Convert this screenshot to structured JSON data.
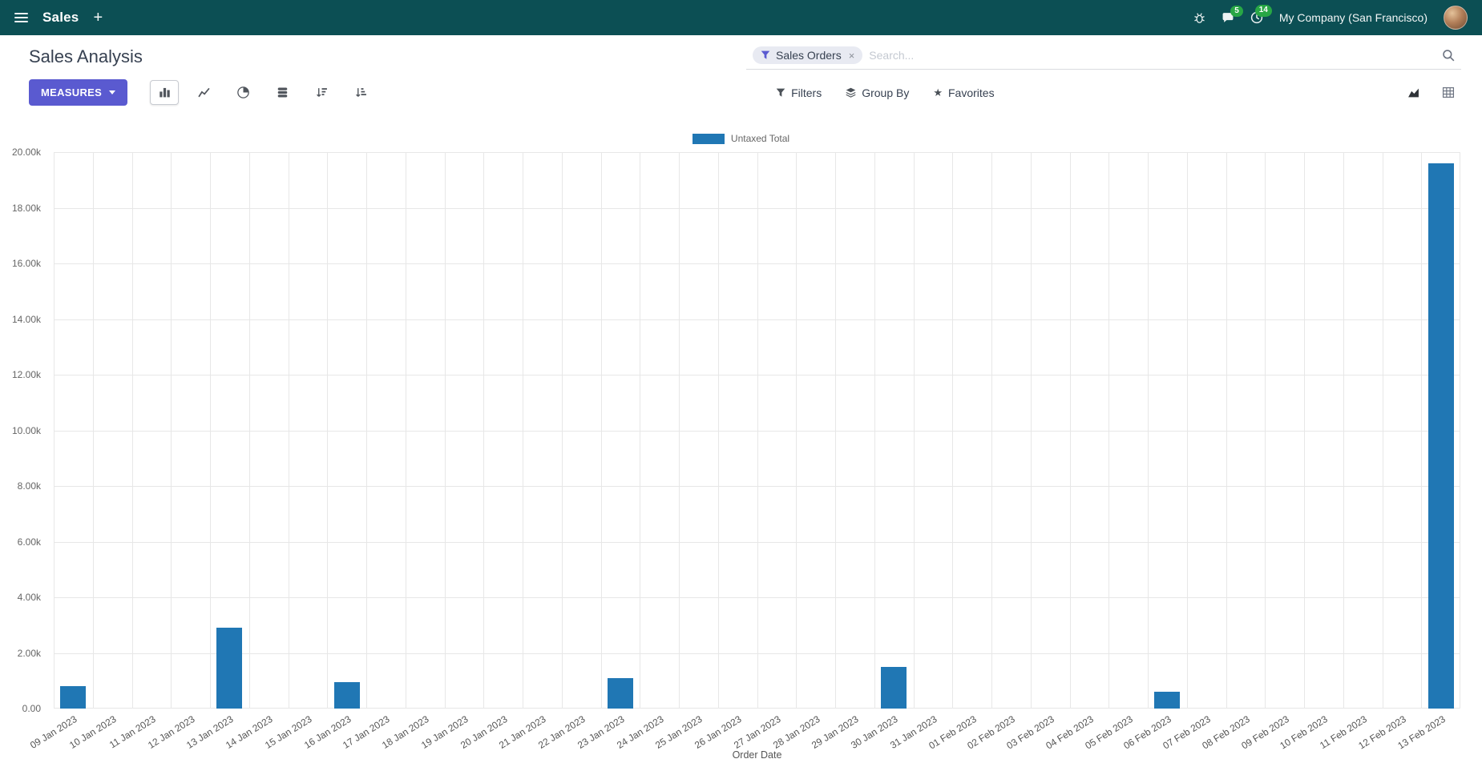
{
  "colors": {
    "navbar-bg": "#0c4f54",
    "primary": "#5a5ad0",
    "badge-green": "#28a745"
  },
  "navbar": {
    "app": "Sales",
    "company": "My Company (San Francisco)",
    "message_badge": "5",
    "activity_badge": "14"
  },
  "control_panel": {
    "title": "Sales Analysis",
    "measures_label": "MEASURES",
    "search": {
      "facet": "Sales Orders",
      "facet_remove": "×",
      "placeholder": "Search..."
    },
    "filters_label": "Filters",
    "group_by_label": "Group By",
    "favorites_label": "Favorites"
  },
  "chart_data": {
    "type": "bar",
    "title": "",
    "xlabel": "Order Date",
    "ylabel": "",
    "ylim": [
      0,
      20000
    ],
    "y_ticks": [
      "0.00",
      "2.00k",
      "4.00k",
      "6.00k",
      "8.00k",
      "10.00k",
      "12.00k",
      "14.00k",
      "16.00k",
      "18.00k",
      "20.00k"
    ],
    "legend": [
      "Untaxed Total"
    ],
    "legend_position": "top",
    "grid": true,
    "color": "#2077b4",
    "categories": [
      "09 Jan 2023",
      "10 Jan 2023",
      "11 Jan 2023",
      "12 Jan 2023",
      "13 Jan 2023",
      "14 Jan 2023",
      "15 Jan 2023",
      "16 Jan 2023",
      "17 Jan 2023",
      "18 Jan 2023",
      "19 Jan 2023",
      "20 Jan 2023",
      "21 Jan 2023",
      "22 Jan 2023",
      "23 Jan 2023",
      "24 Jan 2023",
      "25 Jan 2023",
      "26 Jan 2023",
      "27 Jan 2023",
      "28 Jan 2023",
      "29 Jan 2023",
      "30 Jan 2023",
      "31 Jan 2023",
      "01 Feb 2023",
      "02 Feb 2023",
      "03 Feb 2023",
      "04 Feb 2023",
      "05 Feb 2023",
      "06 Feb 2023",
      "07 Feb 2023",
      "08 Feb 2023",
      "09 Feb 2023",
      "10 Feb 2023",
      "11 Feb 2023",
      "12 Feb 2023",
      "13 Feb 2023"
    ],
    "values": [
      800,
      0,
      0,
      0,
      2900,
      0,
      0,
      950,
      0,
      0,
      0,
      0,
      0,
      0,
      1100,
      0,
      0,
      0,
      0,
      0,
      0,
      1500,
      0,
      0,
      0,
      0,
      0,
      0,
      600,
      0,
      0,
      0,
      0,
      0,
      0,
      19600
    ]
  }
}
